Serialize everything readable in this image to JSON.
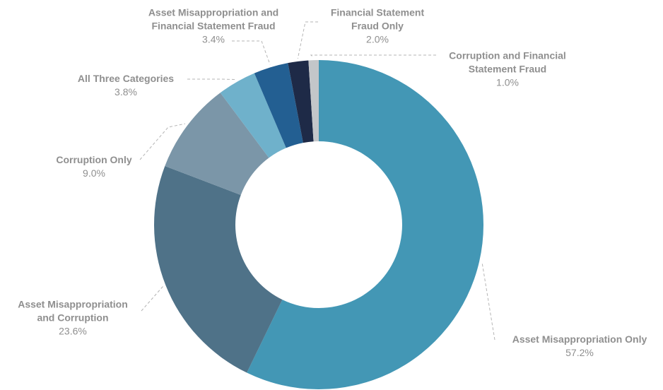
{
  "chart_data": {
    "type": "donut",
    "categories": [
      "Asset Misappropriation Only",
      "Asset Misappropriation and Corruption",
      "Corruption Only",
      "All Three Categories",
      "Asset Misappropriation and Financial Statement Fraud",
      "Financial Statement Fraud Only",
      "Corruption and Financial Statement Fraud"
    ],
    "values": [
      57.2,
      23.6,
      9.0,
      3.8,
      3.4,
      2.0,
      1.0
    ],
    "value_labels": [
      "57.2%",
      "23.6%",
      "9.0%",
      "3.8%",
      "3.4%",
      "2.0%",
      "1.0%"
    ],
    "colors": [
      "#4397b5",
      "#4f7288",
      "#7b96a8",
      "#6fb1cb",
      "#235f92",
      "#1e2a47",
      "#c3c6c9"
    ]
  }
}
